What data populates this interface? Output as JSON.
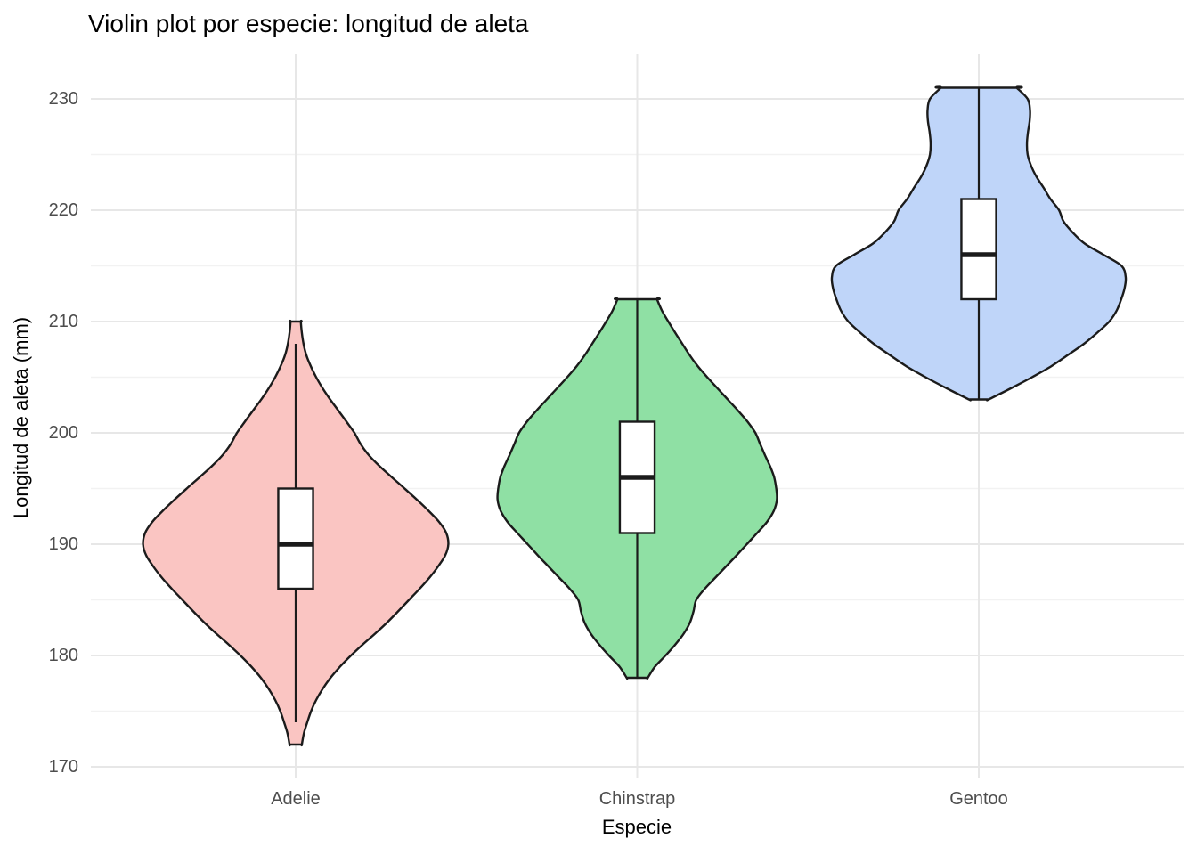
{
  "chart_data": {
    "type": "violin",
    "title": "Violin plot por especie: longitud de aleta",
    "xlabel": "Especie",
    "ylabel": "Longitud de aleta (mm)",
    "categories": [
      "Adelie",
      "Chinstrap",
      "Gentoo"
    ],
    "y_ticks": [
      170,
      180,
      190,
      200,
      210,
      220,
      230
    ],
    "y_minor_ticks": [
      175,
      185,
      195,
      205,
      215,
      225
    ],
    "ylim": [
      169,
      234
    ],
    "grid": "major-and-minor, no axis lines (theme_minimal)",
    "legend": "none",
    "outline_color": "#1b1b1b",
    "box_fill": "#ffffff",
    "major_grid_color": "#e7e7e7",
    "minor_grid_color": "#f2f2f2",
    "series": [
      {
        "name": "Adelie",
        "fill": "#fac5c2",
        "summary": {
          "min": 172,
          "whisker_low": 174,
          "q1": 186,
          "median": 190,
          "q3": 195,
          "whisker_high": 208,
          "max": 210
        },
        "density_profile": [
          [
            172,
            0.018
          ],
          [
            173,
            0.024
          ],
          [
            174,
            0.034
          ],
          [
            175,
            0.045
          ],
          [
            176,
            0.06
          ],
          [
            177,
            0.079
          ],
          [
            178,
            0.102
          ],
          [
            179,
            0.13
          ],
          [
            180,
            0.162
          ],
          [
            181,
            0.197
          ],
          [
            182,
            0.234
          ],
          [
            183,
            0.269
          ],
          [
            184,
            0.301
          ],
          [
            185,
            0.332
          ],
          [
            186,
            0.363
          ],
          [
            187,
            0.392
          ],
          [
            188,
            0.417
          ],
          [
            189,
            0.438
          ],
          [
            190,
            0.447
          ],
          [
            191,
            0.441
          ],
          [
            192,
            0.42
          ],
          [
            193,
            0.389
          ],
          [
            194,
            0.355
          ],
          [
            195,
            0.319
          ],
          [
            196,
            0.282
          ],
          [
            197,
            0.246
          ],
          [
            198,
            0.214
          ],
          [
            199,
            0.19
          ],
          [
            200,
            0.172
          ],
          [
            201,
            0.149
          ],
          [
            202,
            0.125
          ],
          [
            203,
            0.101
          ],
          [
            204,
            0.079
          ],
          [
            205,
            0.06
          ],
          [
            206,
            0.044
          ],
          [
            207,
            0.031
          ],
          [
            208,
            0.023
          ],
          [
            209,
            0.018
          ],
          [
            210,
            0.015
          ]
        ]
      },
      {
        "name": "Chinstrap",
        "fill": "#8fe0a4",
        "summary": {
          "min": 178,
          "whisker_low": 178,
          "q1": 191,
          "median": 196,
          "q3": 201,
          "whisker_high": 212,
          "max": 212
        },
        "density_profile": [
          [
            178,
            0.031
          ],
          [
            179,
            0.052
          ],
          [
            180,
            0.083
          ],
          [
            181,
            0.112
          ],
          [
            182,
            0.137
          ],
          [
            183,
            0.155
          ],
          [
            184,
            0.165
          ],
          [
            185,
            0.173
          ],
          [
            186,
            0.198
          ],
          [
            187,
            0.229
          ],
          [
            188,
            0.26
          ],
          [
            189,
            0.291
          ],
          [
            190,
            0.321
          ],
          [
            191,
            0.351
          ],
          [
            192,
            0.38
          ],
          [
            193,
            0.4
          ],
          [
            194,
            0.409
          ],
          [
            195,
            0.407
          ],
          [
            196,
            0.401
          ],
          [
            197,
            0.389
          ],
          [
            198,
            0.374
          ],
          [
            199,
            0.36
          ],
          [
            200,
            0.346
          ],
          [
            201,
            0.323
          ],
          [
            202,
            0.295
          ],
          [
            203,
            0.265
          ],
          [
            204,
            0.235
          ],
          [
            205,
            0.205
          ],
          [
            206,
            0.177
          ],
          [
            207,
            0.153
          ],
          [
            208,
            0.132
          ],
          [
            209,
            0.111
          ],
          [
            210,
            0.091
          ],
          [
            211,
            0.072
          ],
          [
            212,
            0.058
          ]
        ]
      },
      {
        "name": "Gentoo",
        "fill": "#bfd5f9",
        "summary": {
          "min": 203,
          "whisker_low": 203,
          "q1": 212,
          "median": 216,
          "q3": 221,
          "whisker_high": 231,
          "max": 231
        },
        "density_profile": [
          [
            203,
            0.029
          ],
          [
            204,
            0.094
          ],
          [
            205,
            0.156
          ],
          [
            206,
            0.213
          ],
          [
            207,
            0.261
          ],
          [
            208,
            0.308
          ],
          [
            209,
            0.347
          ],
          [
            210,
            0.382
          ],
          [
            211,
            0.404
          ],
          [
            212,
            0.417
          ],
          [
            213,
            0.427
          ],
          [
            214,
            0.43
          ],
          [
            215,
            0.418
          ],
          [
            216,
            0.365
          ],
          [
            217,
            0.31
          ],
          [
            218,
            0.275
          ],
          [
            219,
            0.248
          ],
          [
            220,
            0.235
          ],
          [
            221,
            0.21
          ],
          [
            222,
            0.19
          ],
          [
            223,
            0.169
          ],
          [
            224,
            0.153
          ],
          [
            225,
            0.143
          ],
          [
            226,
            0.141
          ],
          [
            227,
            0.144
          ],
          [
            228,
            0.149
          ],
          [
            229,
            0.15
          ],
          [
            230,
            0.143
          ],
          [
            231,
            0.111
          ]
        ]
      }
    ]
  }
}
